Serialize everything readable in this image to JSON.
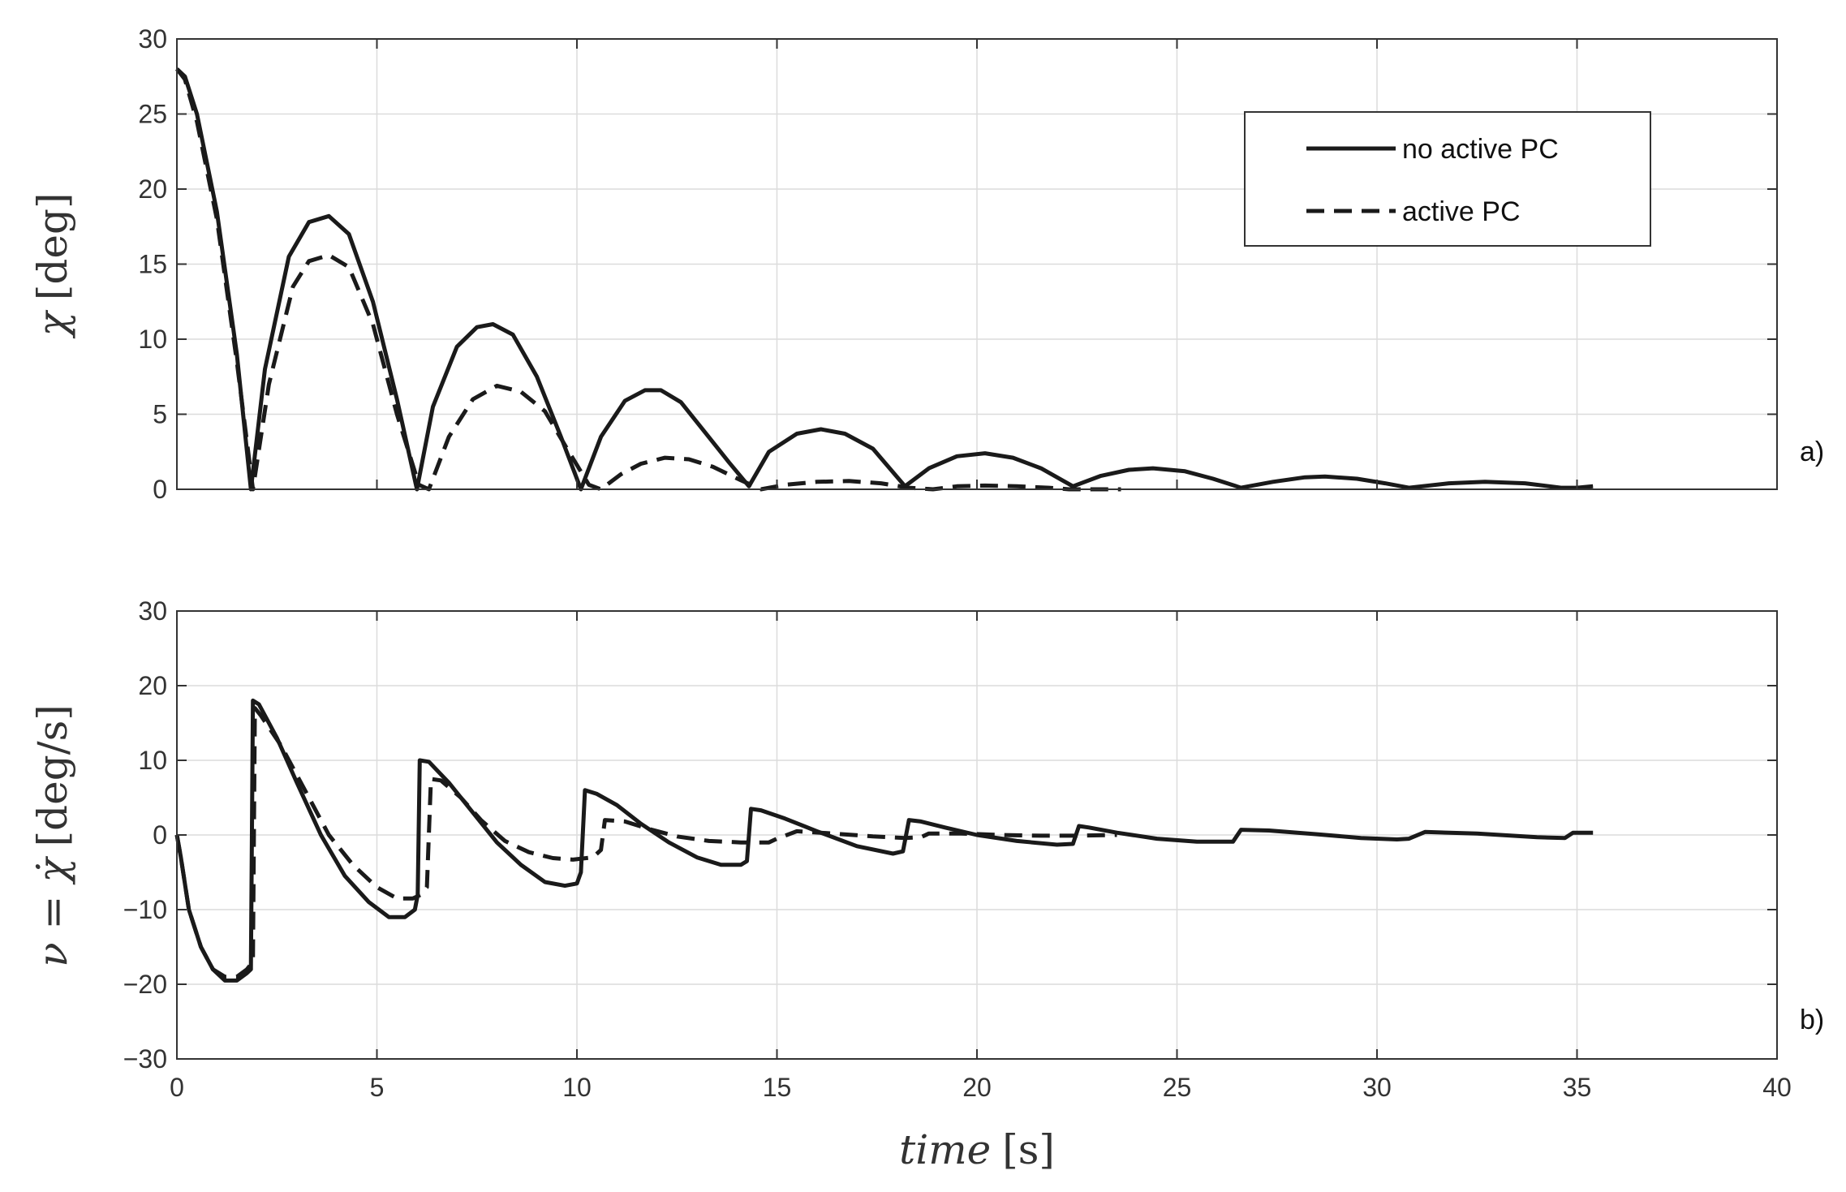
{
  "chart_data": [
    {
      "type": "line",
      "panel_label": "a)",
      "ylabel": "χ [deg]",
      "xlabel": "",
      "xlim": [
        0,
        40
      ],
      "ylim": [
        0,
        30
      ],
      "xticks": [
        0,
        5,
        10,
        15,
        20,
        25,
        30,
        35,
        40
      ],
      "yticks": [
        0,
        5,
        10,
        15,
        20,
        25,
        30
      ],
      "grid": true,
      "legend": {
        "position": "top-right",
        "entries": [
          "no active PC",
          "active PC"
        ]
      },
      "series": [
        {
          "name": "no active PC",
          "style": "solid",
          "x": [
            0,
            0.2,
            0.5,
            1.0,
            1.5,
            1.85,
            2.2,
            2.8,
            3.3,
            3.8,
            4.3,
            4.9,
            5.5,
            6.0,
            6.4,
            7.0,
            7.5,
            7.9,
            8.4,
            9.0,
            9.6,
            10.1,
            10.6,
            11.2,
            11.7,
            12.1,
            12.6,
            13.2,
            13.8,
            14.3,
            14.8,
            15.5,
            16.1,
            16.7,
            17.4,
            18.2,
            18.8,
            19.5,
            20.2,
            20.9,
            21.6,
            22.4,
            23.1,
            23.8,
            24.4,
            25.2,
            25.9,
            26.6,
            27.4,
            28.2,
            28.7,
            29.5,
            30.2,
            30.8,
            31.8,
            32.7,
            33.7,
            34.6,
            35.0,
            35.4
          ],
          "y": [
            28,
            27.5,
            25,
            18.5,
            9,
            0,
            8,
            15.5,
            17.8,
            18.2,
            17,
            12.5,
            6,
            0,
            5.5,
            9.5,
            10.8,
            11,
            10.3,
            7.5,
            3.5,
            0,
            3.5,
            5.9,
            6.6,
            6.6,
            5.8,
            3.8,
            1.8,
            0.2,
            2.5,
            3.7,
            4.0,
            3.7,
            2.7,
            0.2,
            1.4,
            2.2,
            2.4,
            2.1,
            1.4,
            0.2,
            0.9,
            1.3,
            1.4,
            1.2,
            0.7,
            0.1,
            0.5,
            0.8,
            0.85,
            0.7,
            0.4,
            0.1,
            0.4,
            0.5,
            0.4,
            0.1,
            0.1,
            0.2
          ]
        },
        {
          "name": "active PC",
          "style": "dashed",
          "x": [
            0,
            0.2,
            0.5,
            1.0,
            1.5,
            1.9,
            2.3,
            2.9,
            3.3,
            3.8,
            4.3,
            4.9,
            5.5,
            6.05,
            6.3,
            6.8,
            7.4,
            8.0,
            8.6,
            9.2,
            9.8,
            10.3,
            10.6,
            11.1,
            11.6,
            12.2,
            12.8,
            13.4,
            14.1,
            14.6,
            15.2,
            16.0,
            16.8,
            17.6,
            18.3,
            18.9,
            19.5,
            20.2,
            21.0,
            21.8,
            22.3,
            22.8,
            23.6
          ],
          "y": [
            28,
            27.3,
            24.5,
            18,
            8.5,
            0,
            7,
            13.5,
            15.2,
            15.6,
            14.8,
            11,
            5,
            0.3,
            0,
            3.5,
            6,
            6.9,
            6.5,
            5.2,
            2.5,
            0.3,
            0,
            1,
            1.7,
            2.1,
            2,
            1.5,
            0.6,
            0,
            0.3,
            0.5,
            0.55,
            0.4,
            0.1,
            0,
            0.2,
            0.25,
            0.2,
            0.1,
            0,
            0,
            0
          ]
        }
      ]
    },
    {
      "type": "line",
      "panel_label": "b)",
      "ylabel": "ν = χ̇ [deg/s]",
      "xlabel": "time [s]",
      "xlim": [
        0,
        40
      ],
      "ylim": [
        -30,
        30
      ],
      "xticks": [
        0,
        5,
        10,
        15,
        20,
        25,
        30,
        35,
        40
      ],
      "yticks": [
        -30,
        -20,
        -10,
        0,
        10,
        20,
        30
      ],
      "xtick_labels": [
        "0",
        "5",
        "10",
        "15",
        "20",
        "25",
        "30",
        "35",
        "40"
      ],
      "ytick_labels": [
        "−30",
        "−20",
        "−10",
        "0",
        "10",
        "20",
        "30"
      ],
      "grid": true,
      "series": [
        {
          "name": "no active PC",
          "style": "solid",
          "x": [
            0,
            0.1,
            0.3,
            0.6,
            0.9,
            1.2,
            1.5,
            1.75,
            1.85,
            1.9,
            2.05,
            2.5,
            3.0,
            3.6,
            4.2,
            4.8,
            5.3,
            5.7,
            5.95,
            6.02,
            6.07,
            6.3,
            6.8,
            7.4,
            8.0,
            8.6,
            9.2,
            9.7,
            10.0,
            10.1,
            10.2,
            10.5,
            11.0,
            11.6,
            12.3,
            13.0,
            13.6,
            14.1,
            14.25,
            14.35,
            14.6,
            15.2,
            16.0,
            17.0,
            17.9,
            18.15,
            18.3,
            18.6,
            19.2,
            20.0,
            21.0,
            22.0,
            22.4,
            22.55,
            22.8,
            23.5,
            24.5,
            25.5,
            26.4,
            26.6,
            27.3,
            28.5,
            29.6,
            30.5,
            30.8,
            31.2,
            32.5,
            34.0,
            34.7,
            34.9,
            35.4
          ],
          "y": [
            0,
            -3,
            -10,
            -15,
            -18,
            -19.5,
            -19.5,
            -18.5,
            -18,
            18,
            17.5,
            13,
            7,
            0,
            -5.5,
            -9,
            -11,
            -11,
            -10,
            -8,
            10,
            9.8,
            7,
            3,
            -1,
            -4,
            -6.3,
            -6.8,
            -6.5,
            -5,
            6,
            5.5,
            4,
            1.5,
            -1,
            -3,
            -4,
            -4,
            -3.5,
            3.5,
            3.3,
            2.2,
            0.5,
            -1.5,
            -2.5,
            -2.2,
            2,
            1.8,
            1,
            0,
            -0.8,
            -1.3,
            -1.2,
            1.2,
            1.0,
            0.3,
            -0.5,
            -0.9,
            -0.9,
            0.7,
            0.6,
            0.1,
            -0.4,
            -0.6,
            -0.5,
            0.4,
            0.2,
            -0.3,
            -0.4,
            0.3,
            0.3
          ]
        },
        {
          "name": "active PC",
          "style": "dashed",
          "x": [
            0,
            0.1,
            0.3,
            0.6,
            0.9,
            1.2,
            1.5,
            1.75,
            1.9,
            1.95,
            2.1,
            2.6,
            3.2,
            3.8,
            4.4,
            5.0,
            5.5,
            5.9,
            6.1,
            6.25,
            6.35,
            6.6,
            7.1,
            7.6,
            8.2,
            8.8,
            9.4,
            9.9,
            10.4,
            10.6,
            10.7,
            11.2,
            11.8,
            12.5,
            13.3,
            14.1,
            14.8,
            15.0,
            15.5,
            16.4,
            17.4,
            18.2,
            18.6,
            18.8,
            19.6,
            20.6,
            21.6,
            22.5,
            23.5
          ],
          "y": [
            0,
            -3,
            -10,
            -15,
            -18,
            -19,
            -19,
            -18,
            -17,
            17,
            16,
            12,
            6,
            0,
            -4,
            -7,
            -8.5,
            -8.5,
            -8,
            -7,
            7.5,
            7.3,
            5,
            2,
            -0.8,
            -2.3,
            -3.1,
            -3.3,
            -3,
            -2,
            2,
            1.8,
            0.8,
            -0.2,
            -0.8,
            -1,
            -1,
            -0.5,
            0.5,
            0.2,
            -0.2,
            -0.4,
            -0.3,
            0.2,
            0.2,
            0,
            -0.1,
            -0.1,
            0
          ]
        }
      ]
    }
  ],
  "labels": {
    "panel_a_ylabel_symbol": "χ",
    "panel_a_ylabel_unit": "[deg]",
    "panel_b_ylabel_symbol": "ν = χ̇",
    "panel_b_ylabel_unit": "[deg/s]",
    "xlabel_word": "time",
    "xlabel_unit": "[s]"
  }
}
